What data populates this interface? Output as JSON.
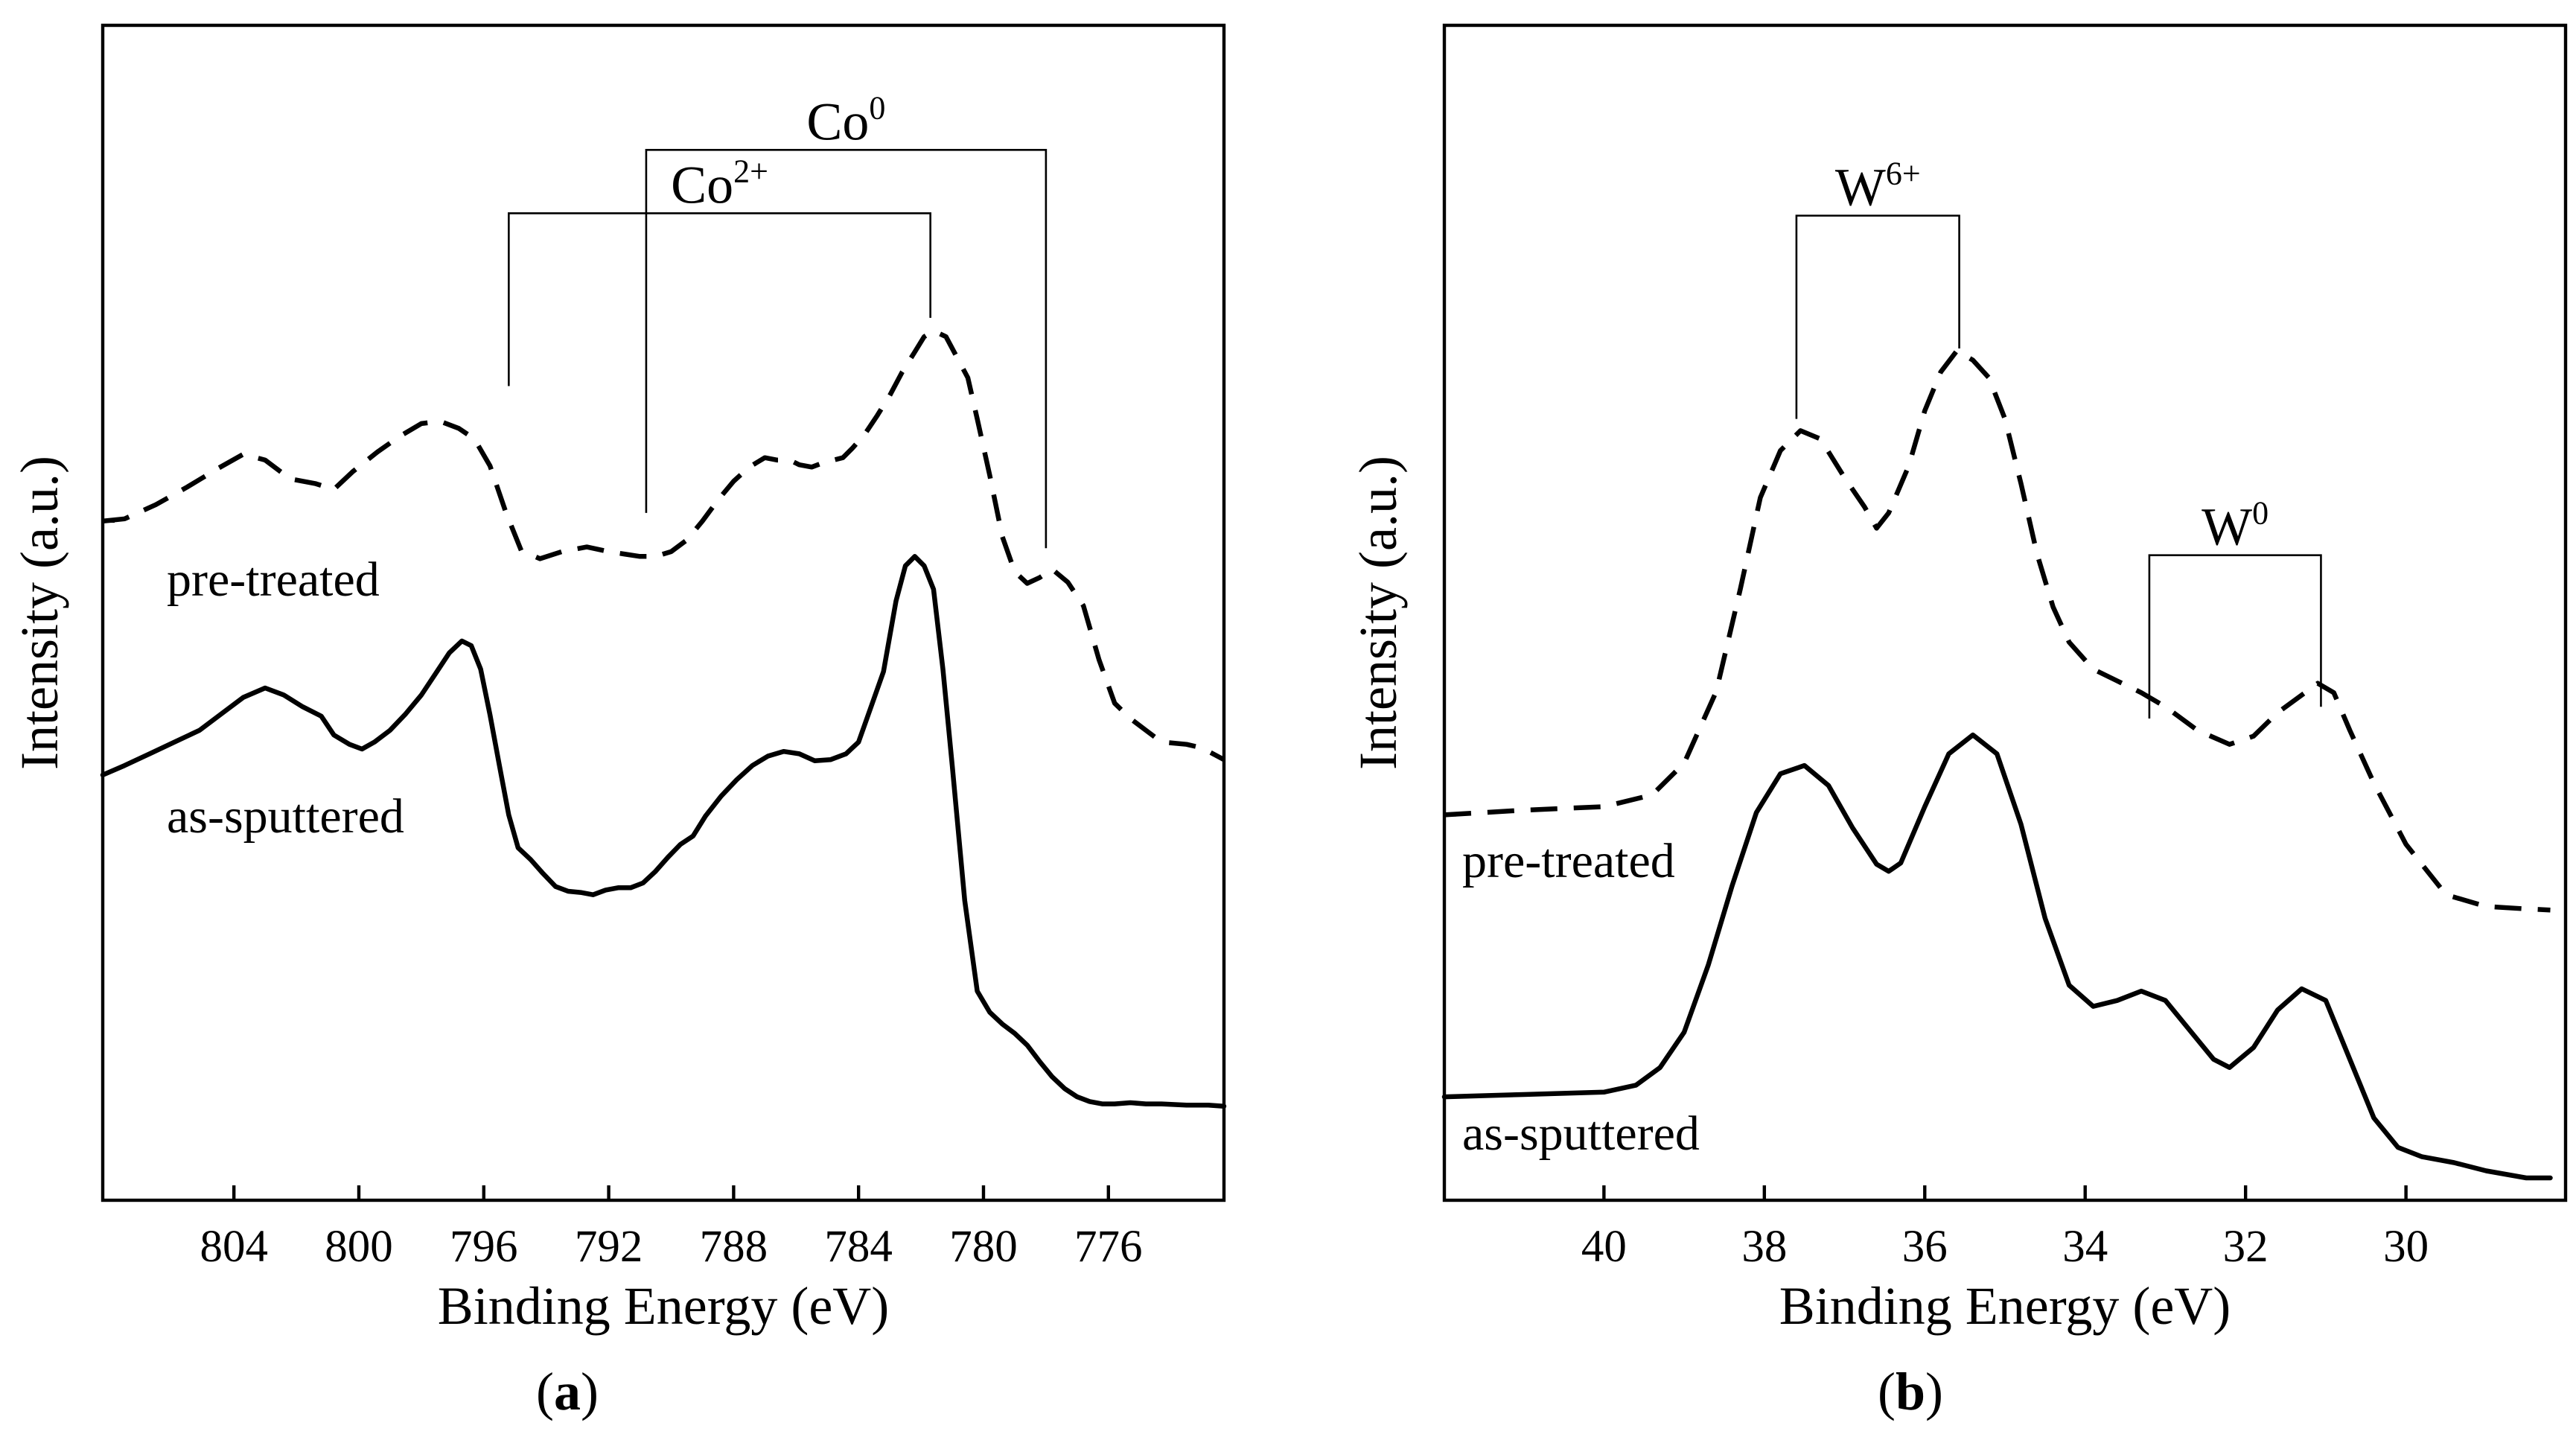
{
  "chart_data": [
    {
      "panel": "a",
      "panel_label": "a",
      "type": "line",
      "xlabel": "Binding Energy (eV)",
      "ylabel": "Intensity (a.u.)",
      "xlim": [
        808.2,
        772.3
      ],
      "ylim": [
        0,
        1
      ],
      "x_reversed": true,
      "xticks": [
        804,
        800,
        796,
        792,
        788,
        784,
        780,
        776
      ],
      "series": [
        {
          "name": "pre-treated",
          "label": "pre-treated",
          "style": "dashed",
          "x": [
            808.2,
            807.5,
            806.5,
            805.5,
            804.5,
            803.7,
            803,
            802.2,
            801.4,
            800.8,
            800.2,
            799.4,
            798.7,
            798,
            797.4,
            796.8,
            796.3,
            795.8,
            795.3,
            794.8,
            794.2,
            793.5,
            792.7,
            792,
            791.5,
            791,
            790.5,
            790,
            789.5,
            789,
            788.5,
            788,
            787.5,
            787,
            786.6,
            786.2,
            785.9,
            785.5,
            785.1,
            784.5,
            784.2,
            783.8,
            783.4,
            783,
            782.6,
            782.2,
            781.9,
            781.6,
            781.2,
            780.9,
            780.5,
            780.2,
            779.8,
            779.4,
            779,
            778.6,
            778.2,
            777.8,
            777.3,
            776.8,
            776.3,
            775.8,
            775.3,
            774.8,
            774.3,
            773.5,
            773,
            772.3
          ],
          "y": [
            0.578,
            0.58,
            0.592,
            0.607,
            0.623,
            0.635,
            0.63,
            0.614,
            0.61,
            0.605,
            0.62,
            0.637,
            0.65,
            0.661,
            0.663,
            0.657,
            0.648,
            0.625,
            0.586,
            0.553,
            0.546,
            0.552,
            0.556,
            0.552,
            0.55,
            0.548,
            0.548,
            0.552,
            0.562,
            0.578,
            0.596,
            0.612,
            0.624,
            0.632,
            0.63,
            0.63,
            0.626,
            0.624,
            0.628,
            0.632,
            0.64,
            0.652,
            0.668,
            0.685,
            0.705,
            0.722,
            0.735,
            0.74,
            0.735,
            0.72,
            0.7,
            0.665,
            0.617,
            0.565,
            0.535,
            0.525,
            0.53,
            0.537,
            0.526,
            0.506,
            0.46,
            0.423,
            0.41,
            0.4,
            0.39,
            0.388,
            0.385,
            0.375
          ]
        },
        {
          "name": "as-sputtered",
          "label": "as-sputtered",
          "style": "solid",
          "x": [
            808.2,
            807.5,
            806.7,
            805.9,
            805.1,
            804.4,
            803.7,
            803,
            802.4,
            801.8,
            801.2,
            800.8,
            800.3,
            799.9,
            799.5,
            799,
            798.5,
            798,
            797.5,
            797.1,
            796.7,
            796.4,
            796.1,
            795.8,
            795.5,
            795.2,
            794.9,
            794.5,
            794.1,
            793.7,
            793.3,
            792.9,
            792.5,
            792.1,
            791.7,
            791.3,
            790.9,
            790.5,
            790.1,
            789.7,
            789.3,
            788.9,
            788.4,
            787.9,
            787.4,
            786.9,
            786.4,
            785.9,
            785.4,
            784.9,
            784.4,
            784,
            783.6,
            783.2,
            782.8,
            782.5,
            782.2,
            781.9,
            781.6,
            781.3,
            781,
            780.6,
            780.2,
            779.8,
            779.4,
            779,
            778.6,
            778.2,
            777.8,
            777.4,
            777,
            776.6,
            776.2,
            775.8,
            775.3,
            774.8,
            774.3,
            773.5,
            772.8,
            772.3
          ],
          "y": [
            0.362,
            0.37,
            0.38,
            0.39,
            0.4,
            0.414,
            0.428,
            0.436,
            0.43,
            0.42,
            0.412,
            0.396,
            0.388,
            0.384,
            0.39,
            0.4,
            0.414,
            0.43,
            0.45,
            0.466,
            0.476,
            0.472,
            0.452,
            0.413,
            0.37,
            0.328,
            0.3,
            0.29,
            0.278,
            0.267,
            0.263,
            0.262,
            0.26,
            0.264,
            0.266,
            0.266,
            0.27,
            0.28,
            0.292,
            0.303,
            0.31,
            0.327,
            0.344,
            0.358,
            0.37,
            0.378,
            0.382,
            0.38,
            0.374,
            0.375,
            0.38,
            0.39,
            0.42,
            0.45,
            0.51,
            0.54,
            0.548,
            0.54,
            0.52,
            0.452,
            0.37,
            0.255,
            0.178,
            0.16,
            0.15,
            0.142,
            0.132,
            0.118,
            0.105,
            0.095,
            0.088,
            0.084,
            0.082,
            0.082,
            0.083,
            0.082,
            0.082,
            0.081,
            0.081,
            0.08
          ]
        }
      ],
      "annotations": [
        {
          "name": "co0-bracket",
          "label_main": "Co",
          "label_sup": "0",
          "x_left": 790.8,
          "x_right": 778.0,
          "y_top": 0.894,
          "y_left_end": 0.585,
          "y_right_end": 0.555
        },
        {
          "name": "co2plus-bracket",
          "label_main": "Co",
          "label_sup": "2+",
          "x_left": 795.2,
          "x_right": 781.7,
          "y_top": 0.84,
          "y_left_end": 0.693,
          "y_right_end": 0.751
        }
      ]
    },
    {
      "panel": "b",
      "panel_label": "b",
      "type": "line",
      "xlabel": "Binding Energy (eV)",
      "ylabel": "Intensity (a.u.)",
      "xlim": [
        41.99,
        28.01
      ],
      "ylim": [
        0,
        1
      ],
      "x_reversed": true,
      "xticks": [
        40,
        38,
        36,
        34,
        32,
        30
      ],
      "series": [
        {
          "name": "pre-treated",
          "label": "pre-treated",
          "style": "dashed",
          "x": [
            41.99,
            41.0,
            40.0,
            39.4,
            39.0,
            38.6,
            38.3,
            38.05,
            37.8,
            37.55,
            37.3,
            37.0,
            36.75,
            36.6,
            36.45,
            36.2,
            36.0,
            35.8,
            35.6,
            35.4,
            35.2,
            35.0,
            34.8,
            34.6,
            34.4,
            34.2,
            33.9,
            33.6,
            33.3,
            33.0,
            32.6,
            32.2,
            31.9,
            31.6,
            31.3,
            31.1,
            30.9,
            30.7,
            30.4,
            30.0,
            29.5,
            29.0,
            28.5,
            28.2
          ],
          "y": [
            0.328,
            0.332,
            0.335,
            0.345,
            0.372,
            0.433,
            0.52,
            0.598,
            0.638,
            0.655,
            0.648,
            0.615,
            0.59,
            0.572,
            0.585,
            0.625,
            0.672,
            0.705,
            0.723,
            0.715,
            0.7,
            0.665,
            0.61,
            0.55,
            0.505,
            0.475,
            0.452,
            0.442,
            0.432,
            0.42,
            0.4,
            0.388,
            0.395,
            0.415,
            0.43,
            0.44,
            0.432,
            0.4,
            0.355,
            0.303,
            0.26,
            0.25,
            0.248,
            0.247
          ]
        },
        {
          "name": "as-sputtered",
          "label": "as-sputtered",
          "style": "solid",
          "x": [
            41.99,
            41.0,
            40.0,
            39.6,
            39.3,
            39.0,
            38.7,
            38.4,
            38.1,
            37.8,
            37.5,
            37.2,
            36.9,
            36.6,
            36.45,
            36.3,
            36.0,
            35.7,
            35.4,
            35.1,
            34.8,
            34.5,
            34.2,
            33.9,
            33.6,
            33.3,
            33.0,
            32.7,
            32.4,
            32.2,
            31.9,
            31.6,
            31.3,
            31.0,
            30.7,
            30.4,
            30.1,
            29.8,
            29.4,
            29.0,
            28.5,
            28.2
          ],
          "y": [
            0.088,
            0.09,
            0.092,
            0.098,
            0.113,
            0.143,
            0.2,
            0.268,
            0.33,
            0.363,
            0.37,
            0.353,
            0.317,
            0.286,
            0.28,
            0.287,
            0.335,
            0.38,
            0.396,
            0.38,
            0.32,
            0.24,
            0.183,
            0.165,
            0.17,
            0.178,
            0.17,
            0.145,
            0.12,
            0.113,
            0.13,
            0.162,
            0.18,
            0.17,
            0.12,
            0.07,
            0.045,
            0.037,
            0.032,
            0.025,
            0.019,
            0.019
          ]
        }
      ],
      "annotations": [
        {
          "name": "w6plus-bracket",
          "label_main": "W",
          "label_sup": "6+",
          "x_left": 37.6,
          "x_right": 35.57,
          "y_top": 0.838,
          "y_left_end": 0.665,
          "y_right_end": 0.725
        },
        {
          "name": "w0-bracket",
          "label_main": "W",
          "label_sup": "0",
          "x_left": 33.2,
          "x_right": 31.06,
          "y_top": 0.549,
          "y_left_end": 0.41,
          "y_right_end": 0.42
        }
      ]
    }
  ]
}
